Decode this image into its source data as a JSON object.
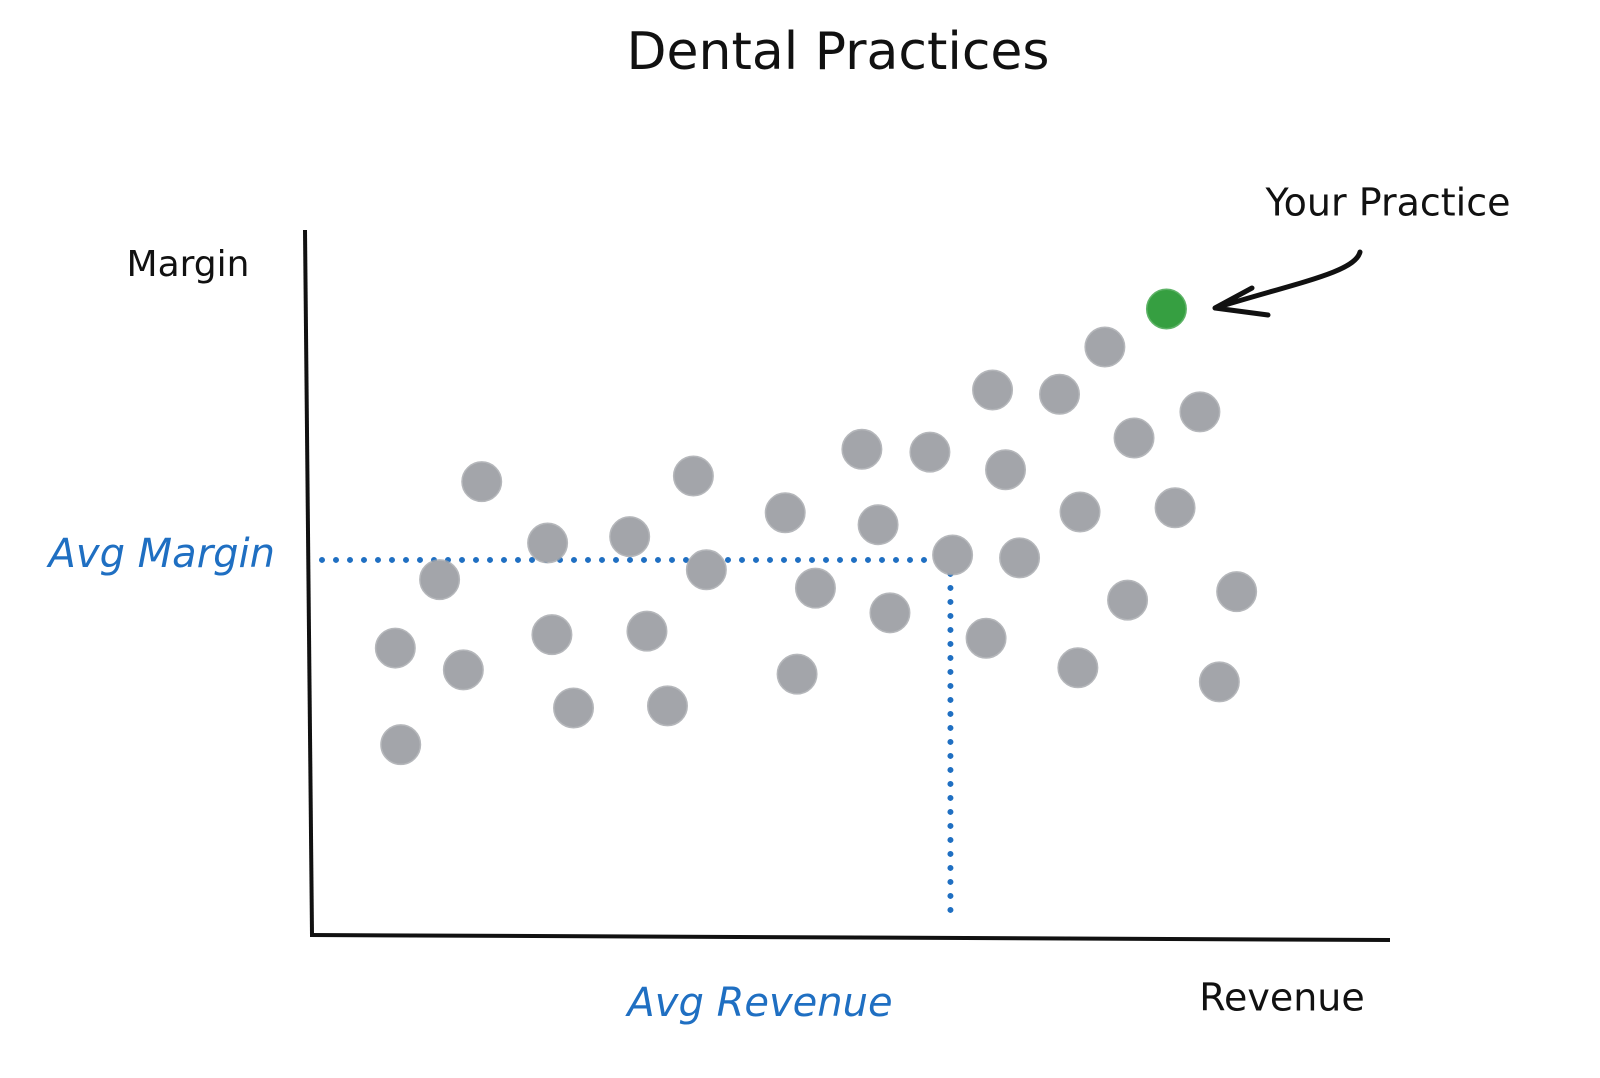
{
  "chart_data": {
    "type": "scatter",
    "title": "Dental Practices",
    "x_label": "Revenue",
    "y_label": "Margin",
    "xlim": [
      0,
      100
    ],
    "ylim": [
      0,
      100
    ],
    "series": [
      {
        "color": "#b9bcc1",
        "x": [
          15.9,
          12.0,
          7.9,
          14.2,
          8.4,
          22.0,
          29.6,
          35.5,
          36.7,
          22.4,
          31.2,
          24.4,
          33.1,
          44.0,
          46.8,
          45.1,
          51.1,
          57.4,
          52.6,
          53.7,
          59.5,
          63.2,
          69.4,
          64.4,
          65.7,
          62.6,
          73.6,
          76.3,
          82.4,
          71.3,
          80.1,
          75.7,
          85.8,
          71.1,
          84.2
        ],
        "values": [
          64.3,
          50.4,
          40.7,
          37.6,
          27.0,
          55.6,
          56.5,
          65.1,
          51.8,
          42.6,
          43.1,
          32.2,
          32.5,
          59.9,
          49.2,
          37.0,
          68.9,
          68.5,
          58.2,
          45.7,
          53.9,
          77.3,
          76.7,
          66.0,
          53.5,
          42.1,
          83.4,
          70.5,
          74.2,
          60.0,
          60.6,
          47.5,
          48.7,
          37.9,
          35.9
        ]
      },
      {
        "name": "Your Practice",
        "color": "#3db54a",
        "x": [
          79.3
        ],
        "values": [
          88.8
        ]
      }
    ],
    "reference_lines": [
      {
        "label": "Avg Margin",
        "axis": "y",
        "value": 53.2,
        "color": "#1f6fc2"
      },
      {
        "label": "Avg Revenue",
        "axis": "x",
        "value": 59.3,
        "color": "#1f6fc2"
      }
    ]
  }
}
